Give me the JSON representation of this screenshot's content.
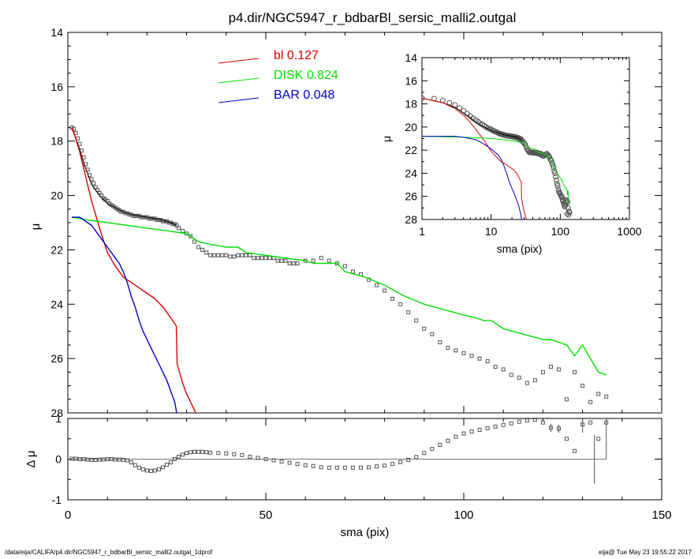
{
  "footer": {
    "left": "/data/eija/CALIFA/p4.dir/NGC5947_r_bdbarBl_sersic_malli2.outgal_1dprof",
    "right": "eija@  Tue May 23 19:55:22 2017"
  },
  "colors": {
    "bl": "#e00000",
    "disk": "#00e000",
    "bar": "#0000cc",
    "data": "#555555",
    "model": "#000000"
  },
  "chart_data": [
    {
      "panel": "main",
      "type": "scatter",
      "title": "p4.dir/NGC5947_r_bdbarBl_sersic_malli2.outgal",
      "xlabel": "",
      "ylabel": "μ",
      "xlim": [
        0,
        150
      ],
      "ylim": [
        28,
        14
      ],
      "yticks": [
        14,
        16,
        18,
        20,
        22,
        24,
        26,
        28
      ],
      "legend": [
        {
          "label": "bl",
          "value": "0.127",
          "color": "#e00000"
        },
        {
          "label": "DISK",
          "value": "0.824",
          "color": "#00e000"
        },
        {
          "label": "BAR",
          "value": "0.048",
          "color": "#0000cc"
        }
      ],
      "legend_position": "top-center",
      "series": [
        {
          "name": "bl",
          "x": [
            1,
            2,
            3,
            4,
            5,
            6,
            8,
            10,
            12,
            14,
            16,
            18,
            20,
            22,
            24,
            26,
            27.4,
            27.6,
            28,
            29,
            30,
            31,
            32,
            33
          ],
          "y": [
            17.5,
            17.9,
            18.4,
            19.0,
            19.6,
            20.2,
            21.2,
            22.1,
            22.6,
            23.0,
            23.2,
            23.4,
            23.6,
            23.8,
            24.1,
            24.5,
            24.8,
            26.2,
            26.4,
            26.9,
            27.3,
            27.6,
            27.9,
            28.2
          ]
        },
        {
          "name": "DISK",
          "x": [
            1,
            5,
            10,
            15,
            20,
            25,
            30,
            33,
            36,
            40,
            43,
            45,
            50,
            55,
            60,
            62,
            66,
            68,
            70,
            75,
            80,
            85,
            90,
            95,
            100,
            103,
            105,
            107,
            110,
            115,
            120,
            122,
            124,
            126,
            128,
            130,
            132,
            134,
            136
          ],
          "y": [
            20.8,
            20.9,
            21.0,
            21.1,
            21.2,
            21.3,
            21.4,
            21.7,
            21.8,
            21.9,
            21.9,
            22.1,
            22.2,
            22.3,
            22.4,
            22.5,
            22.5,
            22.5,
            22.8,
            23.0,
            23.3,
            23.7,
            24.0,
            24.2,
            24.4,
            24.5,
            24.6,
            24.6,
            24.9,
            25.1,
            25.3,
            25.3,
            25.4,
            25.5,
            25.9,
            25.5,
            26.0,
            26.5,
            26.6
          ]
        },
        {
          "name": "BAR",
          "x": [
            1,
            2,
            3,
            4,
            5,
            6,
            7,
            8,
            9,
            10,
            11,
            12,
            13,
            14,
            15,
            16,
            17,
            18,
            19,
            20,
            21,
            22,
            23,
            24,
            25,
            26,
            27,
            27.5
          ],
          "y": [
            20.8,
            20.8,
            20.8,
            20.9,
            21.0,
            21.1,
            21.3,
            21.5,
            21.7,
            21.9,
            22.1,
            22.3,
            22.5,
            22.8,
            23.2,
            23.7,
            24.1,
            24.6,
            25.0,
            25.3,
            25.6,
            25.9,
            26.2,
            26.5,
            26.8,
            27.2,
            27.6,
            28.0
          ]
        },
        {
          "name": "model",
          "x": [
            1,
            2,
            3,
            4,
            5,
            6,
            8,
            10,
            12,
            14,
            16,
            18,
            20,
            22,
            24,
            26,
            27.4
          ],
          "y": [
            17.5,
            17.9,
            18.3,
            18.8,
            19.2,
            19.6,
            20.0,
            20.3,
            20.45,
            20.6,
            20.7,
            20.75,
            20.8,
            20.85,
            20.9,
            21.0,
            21.1
          ]
        },
        {
          "name": "data",
          "x": [
            1,
            1.5,
            2,
            2.5,
            3,
            3.5,
            4,
            4.5,
            5,
            5.5,
            6,
            6.5,
            7,
            7.5,
            8,
            8.5,
            9,
            9.5,
            10,
            10.5,
            11,
            11.5,
            12,
            12.5,
            13,
            13.5,
            14,
            14.5,
            15,
            15.5,
            16,
            16.5,
            17,
            17.5,
            18,
            18.5,
            19,
            19.5,
            20,
            20.5,
            21,
            21.5,
            22,
            22.5,
            23,
            23.5,
            24,
            24.5,
            25,
            25.5,
            26,
            26.5,
            27,
            27.5,
            28,
            29,
            30,
            31,
            32,
            33,
            34,
            35,
            36,
            37,
            38,
            39,
            40,
            41,
            42,
            43,
            44,
            45,
            46,
            47,
            48,
            49,
            50,
            51,
            52,
            53,
            54,
            55,
            56,
            57,
            58,
            60,
            62,
            64,
            66,
            68,
            70,
            72,
            74,
            76,
            78,
            80,
            82,
            84,
            86,
            88,
            90,
            92,
            94,
            96,
            98,
            100,
            102,
            104,
            106,
            108,
            110,
            112,
            114,
            116,
            118,
            120,
            122,
            124,
            126,
            128,
            130,
            132,
            134,
            136
          ],
          "y": [
            17.5,
            17.55,
            17.7,
            17.9,
            18.1,
            18.35,
            18.6,
            18.85,
            19.05,
            19.25,
            19.4,
            19.55,
            19.7,
            19.8,
            19.9,
            20.0,
            20.1,
            20.15,
            20.2,
            20.3,
            20.35,
            20.4,
            20.45,
            20.5,
            20.55,
            20.6,
            20.6,
            20.65,
            20.65,
            20.7,
            20.7,
            20.75,
            20.75,
            20.75,
            20.75,
            20.8,
            20.8,
            20.8,
            20.8,
            20.85,
            20.85,
            20.85,
            20.85,
            20.9,
            20.9,
            20.9,
            20.95,
            20.95,
            20.95,
            21.0,
            21.0,
            21.05,
            21.05,
            21.1,
            21.2,
            21.3,
            21.4,
            21.5,
            21.7,
            21.9,
            22.0,
            22.1,
            22.2,
            22.2,
            22.2,
            22.2,
            22.2,
            22.25,
            22.25,
            22.2,
            22.2,
            22.2,
            22.2,
            22.3,
            22.3,
            22.3,
            22.3,
            22.3,
            22.3,
            22.4,
            22.4,
            22.4,
            22.5,
            22.5,
            22.5,
            22.4,
            22.4,
            22.3,
            22.4,
            22.5,
            22.6,
            22.8,
            22.9,
            23.1,
            23.3,
            23.5,
            23.8,
            24.0,
            24.3,
            24.6,
            24.9,
            25.1,
            25.4,
            25.6,
            25.7,
            25.8,
            25.9,
            26.0,
            26.1,
            26.3,
            26.4,
            26.6,
            26.7,
            26.9,
            26.8,
            26.5,
            26.3,
            26.4,
            27.5,
            26.5,
            27.0,
            27.6,
            27.3,
            27.4
          ]
        }
      ]
    },
    {
      "panel": "inset",
      "type": "scatter",
      "title": "",
      "xlabel": "sma (pix)",
      "ylabel": "μ",
      "xscale": "log",
      "xlim": [
        1,
        1000
      ],
      "ylim": [
        28,
        14
      ],
      "xticks": [
        1,
        10,
        100,
        1000
      ],
      "yticks": [
        14,
        16,
        18,
        20,
        22,
        24,
        26,
        28
      ]
    },
    {
      "panel": "residual",
      "type": "scatter",
      "title": "",
      "xlabel": "sma (pix)",
      "ylabel": "Δ μ",
      "xlim": [
        0,
        150
      ],
      "ylim": [
        -1,
        1
      ],
      "xticks": [
        0,
        50,
        100,
        150
      ],
      "yticks": [
        -1,
        0,
        1
      ],
      "series": [
        {
          "name": "residual",
          "x": [
            1,
            2,
            3,
            4,
            5,
            6,
            7,
            8,
            9,
            10,
            11,
            12,
            13,
            14,
            15,
            16,
            17,
            18,
            19,
            20,
            21,
            22,
            23,
            24,
            25,
            26,
            27,
            28,
            29,
            30,
            31,
            32,
            33,
            34,
            35,
            36,
            38,
            40,
            42,
            44,
            46,
            48,
            50,
            52,
            54,
            56,
            58,
            60,
            62,
            64,
            66,
            68,
            70,
            72,
            74,
            76,
            78,
            80,
            82,
            84,
            86,
            88,
            90,
            92,
            94,
            96,
            98,
            100,
            102,
            104,
            106,
            108,
            110,
            112,
            114,
            116,
            118,
            120,
            122,
            124,
            126,
            128,
            130,
            132,
            134,
            136
          ],
          "y": [
            0.01,
            0.01,
            0.0,
            0.0,
            -0.01,
            -0.02,
            -0.02,
            -0.01,
            -0.01,
            0.0,
            0.0,
            -0.01,
            -0.01,
            -0.02,
            -0.03,
            -0.08,
            -0.15,
            -0.21,
            -0.25,
            -0.28,
            -0.29,
            -0.28,
            -0.25,
            -0.2,
            -0.14,
            -0.08,
            0.0,
            0.06,
            0.11,
            0.15,
            0.17,
            0.18,
            0.18,
            0.18,
            0.17,
            0.16,
            0.15,
            0.14,
            0.12,
            0.1,
            0.06,
            0.03,
            0.0,
            -0.03,
            -0.06,
            -0.09,
            -0.12,
            -0.15,
            -0.17,
            -0.2,
            -0.21,
            -0.21,
            -0.21,
            -0.21,
            -0.21,
            -0.2,
            -0.18,
            -0.16,
            -0.12,
            -0.07,
            -0.02,
            0.05,
            0.15,
            0.25,
            0.35,
            0.45,
            0.55,
            0.63,
            0.68,
            0.72,
            0.76,
            0.8,
            0.84,
            0.88,
            0.92,
            0.95,
            0.97,
            0.9,
            0.77,
            0.75,
            0.5,
            0.2,
            0.85,
            0.9,
            0.5,
            0.9
          ],
          "errors": {
            "x": [
              122,
              124,
              130,
              133,
              136
            ],
            "y": [
              0.1,
              0.1,
              0.2,
              0.6,
              0.9
            ]
          }
        }
      ]
    }
  ]
}
